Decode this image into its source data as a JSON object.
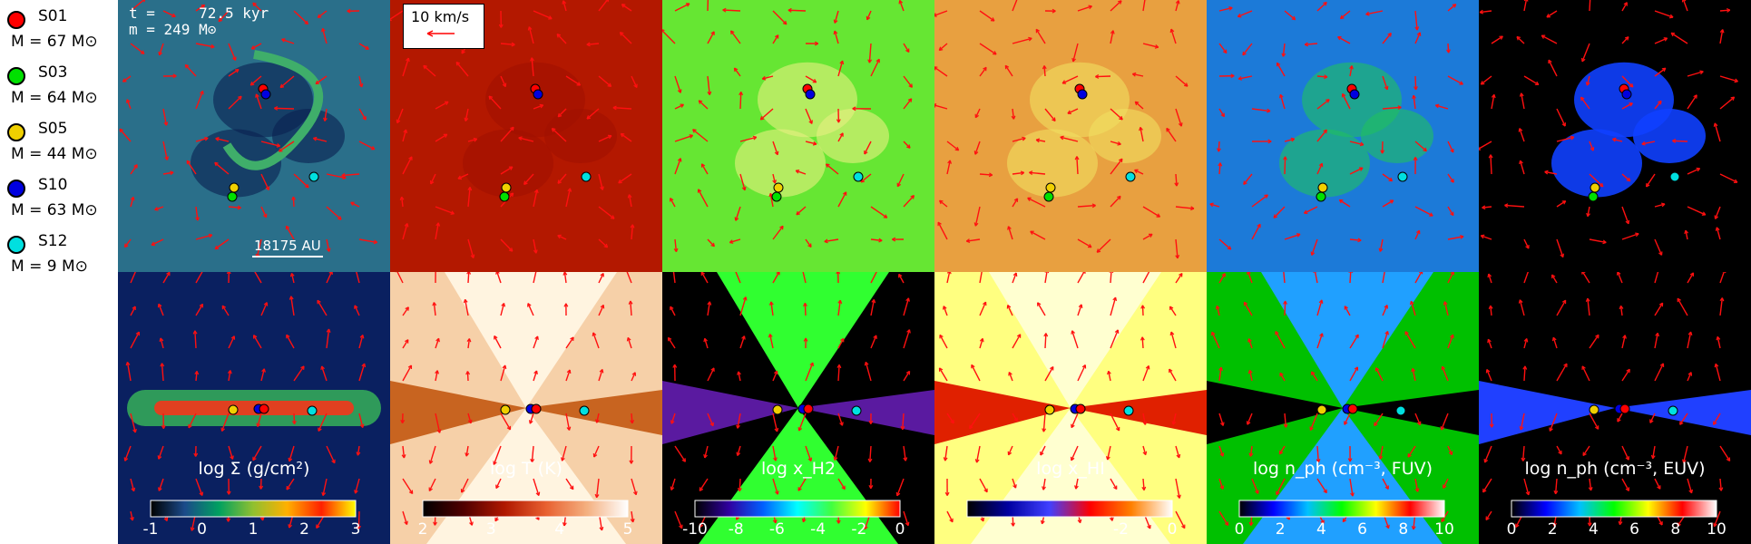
{
  "legend": [
    {
      "name": "S01",
      "mass": "M =  67 M⊙",
      "color": "#ff0000"
    },
    {
      "name": "S03",
      "mass": "M =  64 M⊙",
      "color": "#00e000"
    },
    {
      "name": "S05",
      "mass": "M =  44 M⊙",
      "color": "#f0d000"
    },
    {
      "name": "S10",
      "mass": "M =  63 M⊙",
      "color": "#0000e0"
    },
    {
      "name": "S12",
      "mass": "M =   9 M⊙",
      "color": "#00e0e0"
    }
  ],
  "time_label": "t =     72.5 kyr\nm = 249 M⊙",
  "velocity_label": "10 km/s",
  "scale_label": "18175 AU",
  "panels": [
    {
      "key": "sigma",
      "caption": "log Σ (g/cm²)",
      "ticks": [
        "-1",
        "0",
        "1",
        "2",
        "3"
      ],
      "colormap": [
        "#000000",
        "#1b4a8a",
        "#00a060",
        "#90c030",
        "#ffb000",
        "#ff2000",
        "#ffff00"
      ]
    },
    {
      "key": "temp",
      "caption": "log T (K)",
      "ticks": [
        "2",
        "3",
        "4",
        "5"
      ],
      "colormap": [
        "#000000",
        "#500000",
        "#b01800",
        "#e86030",
        "#f4b080",
        "#ffffff"
      ]
    },
    {
      "key": "xh2",
      "caption": "log x_H2",
      "ticks": [
        "-10",
        "-8",
        "-6",
        "-4",
        "-2",
        "0"
      ],
      "colormap": [
        "#000000",
        "#3000a0",
        "#0060ff",
        "#00ffff",
        "#40ff40",
        "#ffff00",
        "#ff0000"
      ]
    },
    {
      "key": "xhi",
      "caption": "log x_HI",
      "ticks": [
        "",
        "",
        "",
        "-2",
        "0"
      ],
      "colormap": [
        "#000000",
        "#0000a0",
        "#4040ff",
        "#ff0000",
        "#ff8000",
        "#ffffff"
      ]
    },
    {
      "key": "fuv",
      "caption": "log n_ph (cm⁻³, FUV)",
      "ticks": [
        "0",
        "2",
        "4",
        "6",
        "8",
        "10"
      ],
      "colormap": [
        "#000000",
        "#0000ff",
        "#00c0ff",
        "#00ff00",
        "#ffff00",
        "#ff0000",
        "#ffffff"
      ]
    },
    {
      "key": "euv",
      "caption": "log n_ph (cm⁻³, EUV)",
      "ticks": [
        "0",
        "2",
        "4",
        "6",
        "8",
        "10"
      ],
      "colormap": [
        "#000000",
        "#0000ff",
        "#00c0ff",
        "#00ff00",
        "#ffff00",
        "#ff0000",
        "#ffffff"
      ]
    }
  ]
}
